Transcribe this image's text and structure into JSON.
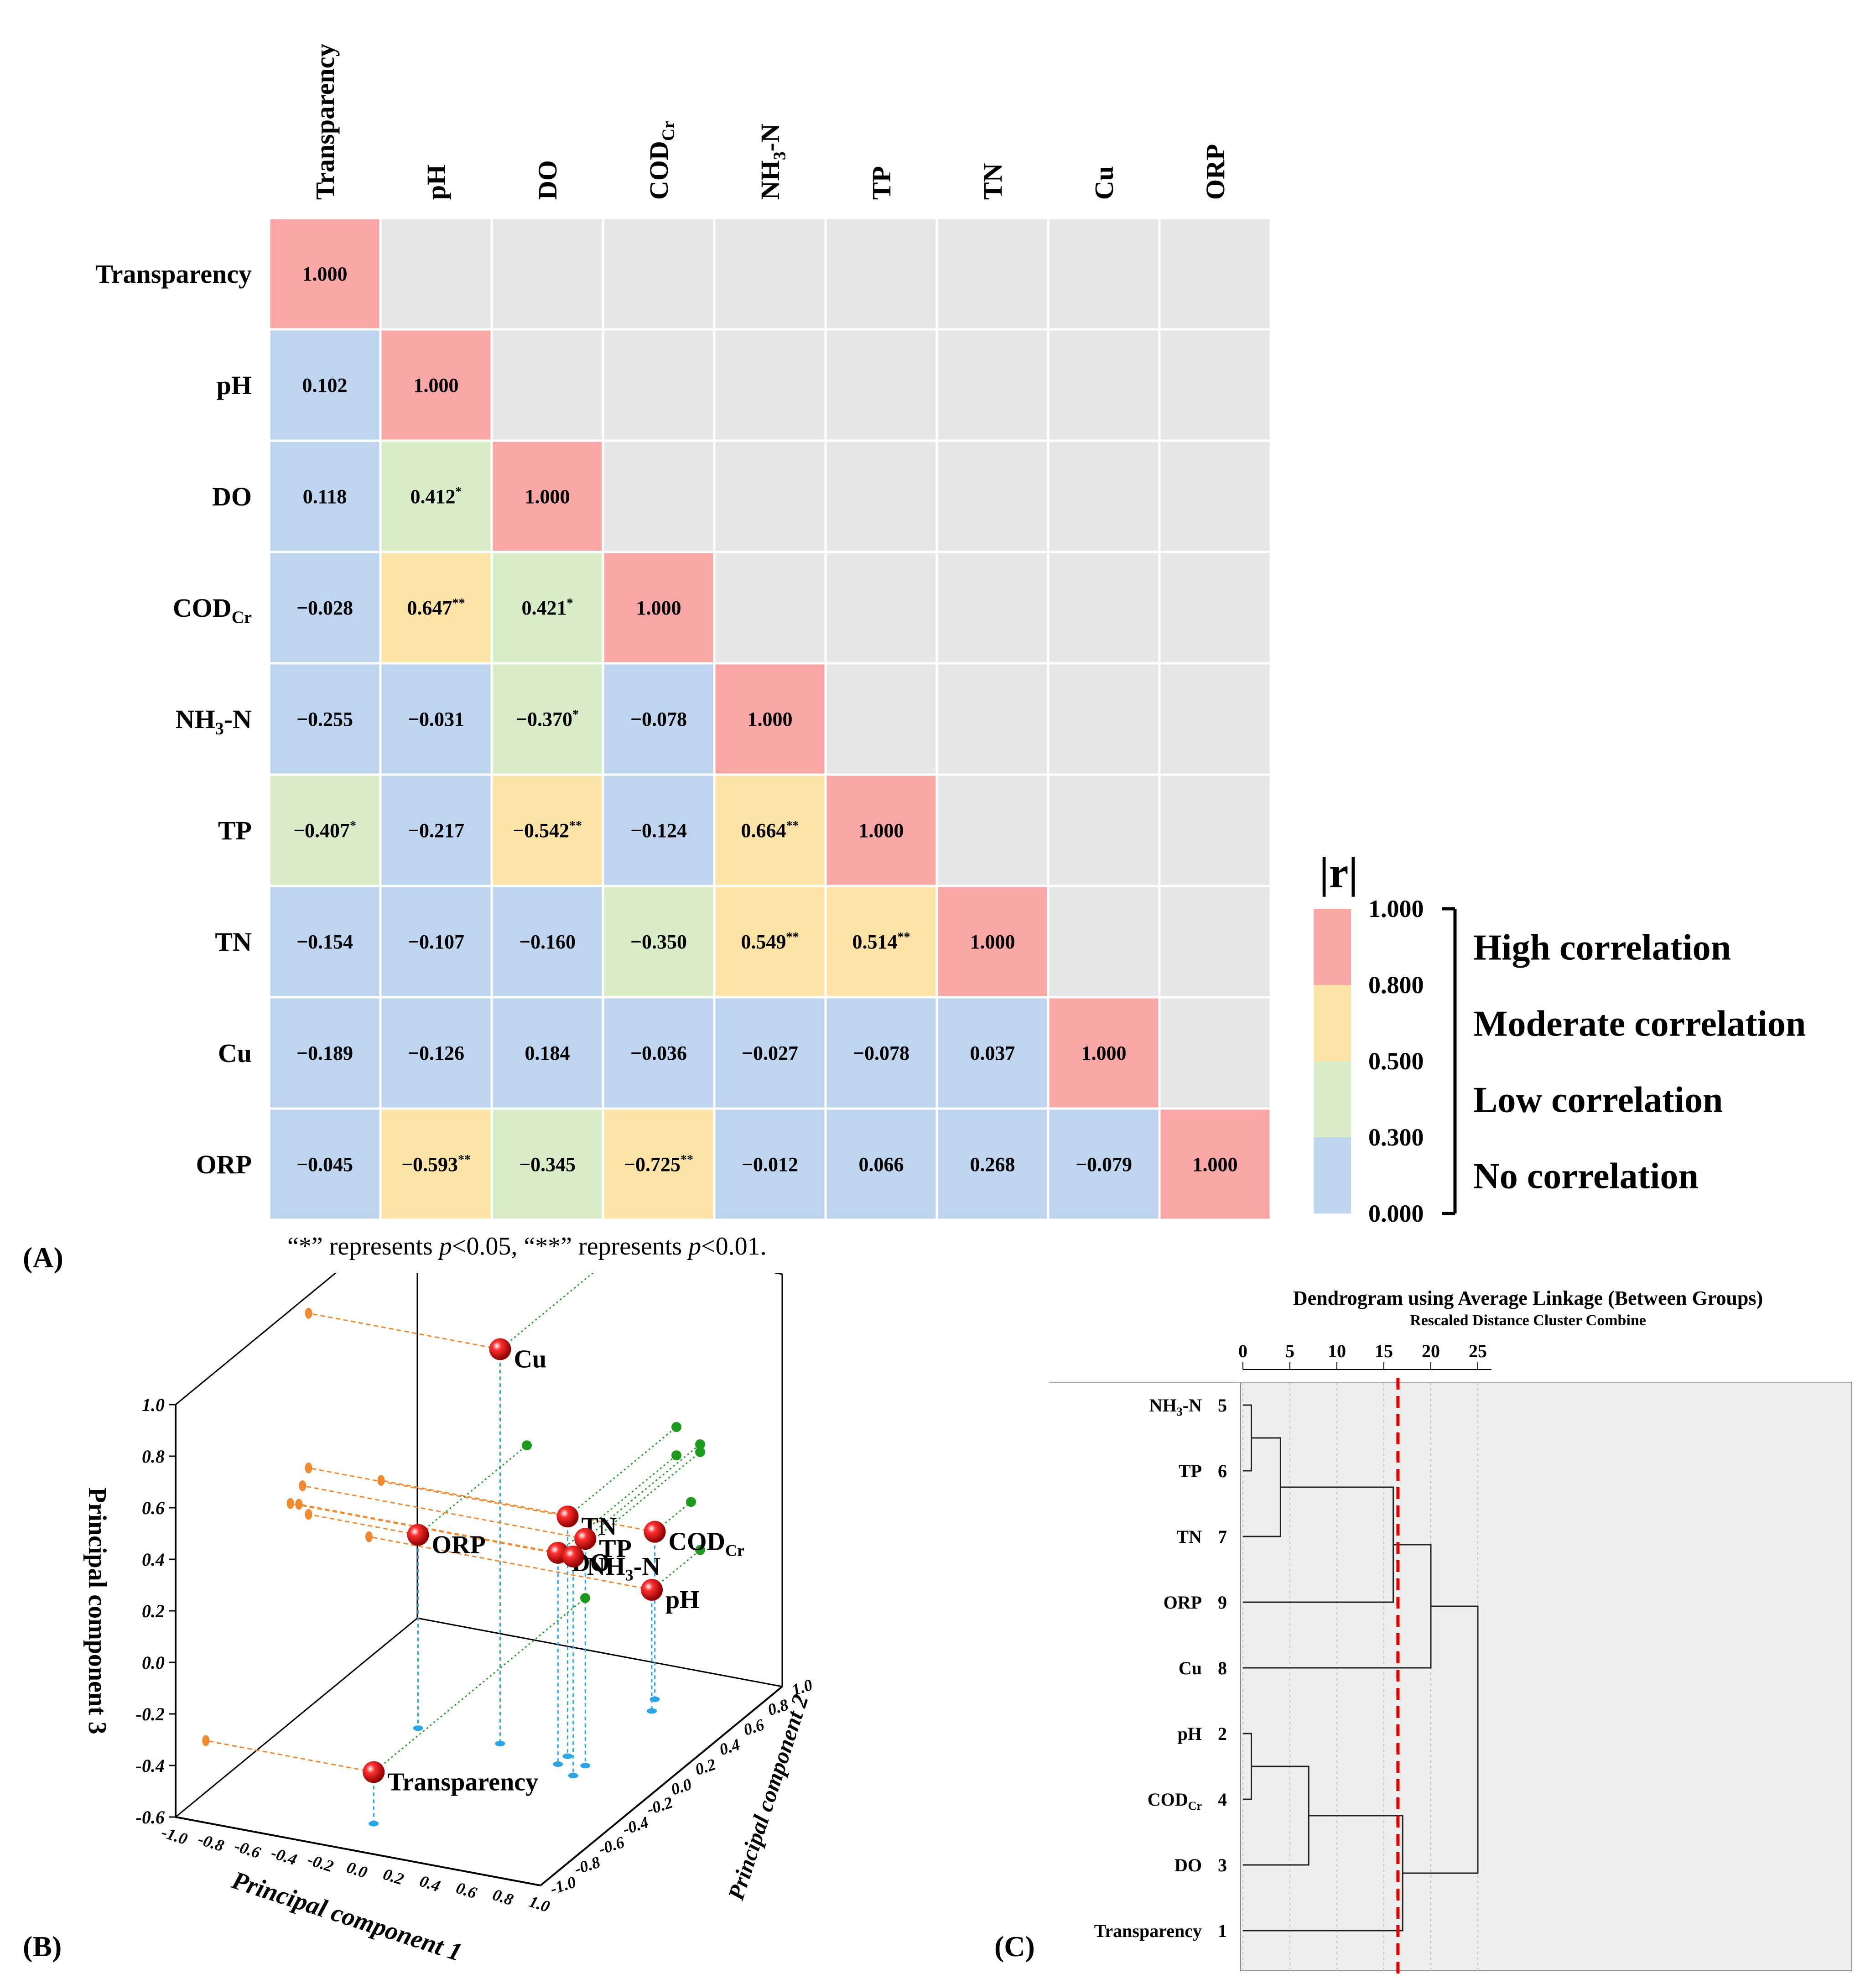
{
  "panels": {
    "a": "(A)",
    "b": "(B)",
    "c": "(C)"
  },
  "note": {
    "q1": "“*”",
    "t1": " represents ",
    "p1": "p",
    "v1": "<0.05, ",
    "q2": "“**”",
    "t2": " represents ",
    "p2": "p",
    "v2": "<0.01."
  },
  "chart_data": [
    {
      "type": "heatmap",
      "title": "",
      "variables": [
        {
          "label": "Transparency",
          "sub": ""
        },
        {
          "label": "pH",
          "sub": ""
        },
        {
          "label": "DO",
          "sub": ""
        },
        {
          "label": "COD",
          "sub": "Cr"
        },
        {
          "label": "NH",
          "sub": "3",
          "tail": "-N"
        },
        {
          "label": "TP",
          "sub": ""
        },
        {
          "label": "TN",
          "sub": ""
        },
        {
          "label": "Cu",
          "sub": ""
        },
        {
          "label": "ORP",
          "sub": ""
        }
      ],
      "matrix": [
        [
          {
            "v": "1.000"
          }
        ],
        [
          {
            "v": "0.102"
          },
          {
            "v": "1.000"
          }
        ],
        [
          {
            "v": "0.118"
          },
          {
            "v": "0.412",
            "s": "*"
          },
          {
            "v": "1.000"
          }
        ],
        [
          {
            "v": "−0.028"
          },
          {
            "v": "0.647",
            "s": "**"
          },
          {
            "v": "0.421",
            "s": "*"
          },
          {
            "v": "1.000"
          }
        ],
        [
          {
            "v": "−0.255"
          },
          {
            "v": "−0.031"
          },
          {
            "v": "−0.370",
            "s": "*"
          },
          {
            "v": "−0.078"
          },
          {
            "v": "1.000"
          }
        ],
        [
          {
            "v": "−0.407",
            "s": "*"
          },
          {
            "v": "−0.217"
          },
          {
            "v": "−0.542",
            "s": "**"
          },
          {
            "v": "−0.124"
          },
          {
            "v": "0.664",
            "s": "**"
          },
          {
            "v": "1.000"
          }
        ],
        [
          {
            "v": "−0.154"
          },
          {
            "v": "−0.107"
          },
          {
            "v": "−0.160"
          },
          {
            "v": "−0.350"
          },
          {
            "v": "0.549",
            "s": "**"
          },
          {
            "v": "0.514",
            "s": "**"
          },
          {
            "v": "1.000"
          }
        ],
        [
          {
            "v": "−0.189"
          },
          {
            "v": "−0.126"
          },
          {
            "v": "0.184"
          },
          {
            "v": "−0.036"
          },
          {
            "v": "−0.027"
          },
          {
            "v": "−0.078"
          },
          {
            "v": "0.037"
          },
          {
            "v": "1.000"
          }
        ],
        [
          {
            "v": "−0.045"
          },
          {
            "v": "−0.593",
            "s": "**"
          },
          {
            "v": "−0.345"
          },
          {
            "v": "−0.725",
            "s": "**"
          },
          {
            "v": "−0.012"
          },
          {
            "v": "0.066"
          },
          {
            "v": "0.268"
          },
          {
            "v": "−0.079"
          },
          {
            "v": "1.000"
          }
        ]
      ],
      "empty_color": "#e6e6e6",
      "legend": {
        "title": "|r|",
        "ticks": [
          "1.000",
          "0.800",
          "0.500",
          "0.300",
          "0.000"
        ],
        "bands": [
          {
            "min": 0.8,
            "max": 1.0,
            "color": "#f8a6a6",
            "label": "High correlation"
          },
          {
            "min": 0.5,
            "max": 0.8,
            "color": "#fde4a6",
            "label": "Moderate correlation"
          },
          {
            "min": 0.3,
            "max": 0.5,
            "color": "#d7ecc7",
            "label": "Low correlation"
          },
          {
            "min": 0.0,
            "max": 0.3,
            "color": "#bfd4ee",
            "label": "No correlation"
          }
        ]
      }
    },
    {
      "type": "scatter",
      "title": "",
      "xlabel": "Principal component 1",
      "ylabel": "Principal component 2",
      "zlabel": "Principal component 3",
      "xlim": [
        -1.0,
        1.0
      ],
      "ylim": [
        -1.0,
        1.0
      ],
      "zlim": [
        -0.6,
        1.0
      ],
      "xticks": [
        "-1.0",
        "-0.8",
        "-0.6",
        "-0.4",
        "-0.2",
        "0.0",
        "0.2",
        "0.4",
        "0.6",
        "0.8",
        "1.0"
      ],
      "yticks": [
        "-1.0",
        "-0.8",
        "-0.6",
        "-0.4",
        "-0.2",
        "0.0",
        "0.2",
        "0.4",
        "0.6",
        "0.8",
        "1.0"
      ],
      "zticks": [
        "-0.6",
        "-0.4",
        "-0.2",
        "0.0",
        "0.2",
        "0.4",
        "0.6",
        "0.8",
        "1.0"
      ],
      "points": [
        {
          "label": "Cu",
          "sub": "",
          "tail": "",
          "x": 0.05,
          "y": 0.1,
          "z": 0.93
        },
        {
          "label": "TN",
          "sub": "",
          "tail": "",
          "x": 0.42,
          "y": 0.1,
          "z": 0.33
        },
        {
          "label": "TP",
          "sub": "",
          "tail": "",
          "x": 0.55,
          "y": 0.05,
          "z": 0.28
        },
        {
          "label": "DO",
          "sub": "",
          "tail": "",
          "x": 0.42,
          "y": 0.02,
          "z": 0.22
        },
        {
          "label": "NH",
          "sub": "3",
          "tail": "-N",
          "x": 0.55,
          "y": -0.05,
          "z": 0.25
        },
        {
          "label": "ORP",
          "sub": "",
          "tail": "",
          "x": -0.4,
          "y": 0.1,
          "z": 0.15
        },
        {
          "label": "COD",
          "sub": "Cr",
          "tail": "",
          "x": 0.5,
          "y": 0.7,
          "z": 0.05
        },
        {
          "label": "pH",
          "sub": "",
          "tail": "",
          "x": 0.55,
          "y": 0.6,
          "z": -0.13
        },
        {
          "label": "Transparency",
          "sub": "",
          "tail": "",
          "x": -0.08,
          "y": -0.75,
          "z": -0.4
        }
      ]
    },
    {
      "type": "dendrogram",
      "title": "Dendrogram using Average Linkage (Between Groups)",
      "subtitle": "Rescaled Distance Cluster Combine",
      "xlim": [
        0,
        25
      ],
      "xticks": [
        0,
        5,
        10,
        15,
        20,
        25
      ],
      "leaves": [
        {
          "label": "NH",
          "sub": "3",
          "tail": "-N",
          "id": "5"
        },
        {
          "label": "TP",
          "sub": "",
          "tail": "",
          "id": "6"
        },
        {
          "label": "TN",
          "sub": "",
          "tail": "",
          "id": "7"
        },
        {
          "label": "ORP",
          "sub": "",
          "tail": "",
          "id": "9"
        },
        {
          "label": "Cu",
          "sub": "",
          "tail": "",
          "id": "8"
        },
        {
          "label": "pH",
          "sub": "",
          "tail": "",
          "id": "2"
        },
        {
          "label": "COD",
          "sub": "Cr",
          "tail": "",
          "id": "4"
        },
        {
          "label": "DO",
          "sub": "",
          "tail": "",
          "id": "3"
        },
        {
          "label": "Transparency",
          "sub": "",
          "tail": "",
          "id": "1"
        }
      ],
      "merges": [
        {
          "a": "L0",
          "b": "L1",
          "h": 0.9,
          "id": "M1"
        },
        {
          "a": "M1",
          "b": "L2",
          "h": 4.0,
          "id": "M2"
        },
        {
          "a": "M2",
          "b": "L3",
          "h": 16.0,
          "id": "M3"
        },
        {
          "a": "M3",
          "b": "L4",
          "h": 20.0,
          "id": "M4"
        },
        {
          "a": "L5",
          "b": "L6",
          "h": 0.9,
          "id": "M5"
        },
        {
          "a": "M5",
          "b": "L7",
          "h": 7.0,
          "id": "M6"
        },
        {
          "a": "M6",
          "b": "L8",
          "h": 17.0,
          "id": "M7"
        },
        {
          "a": "M4",
          "b": "M7",
          "h": 25.0,
          "id": "M8"
        }
      ],
      "cut": 16.5,
      "cut_color": "#e00000"
    }
  ]
}
